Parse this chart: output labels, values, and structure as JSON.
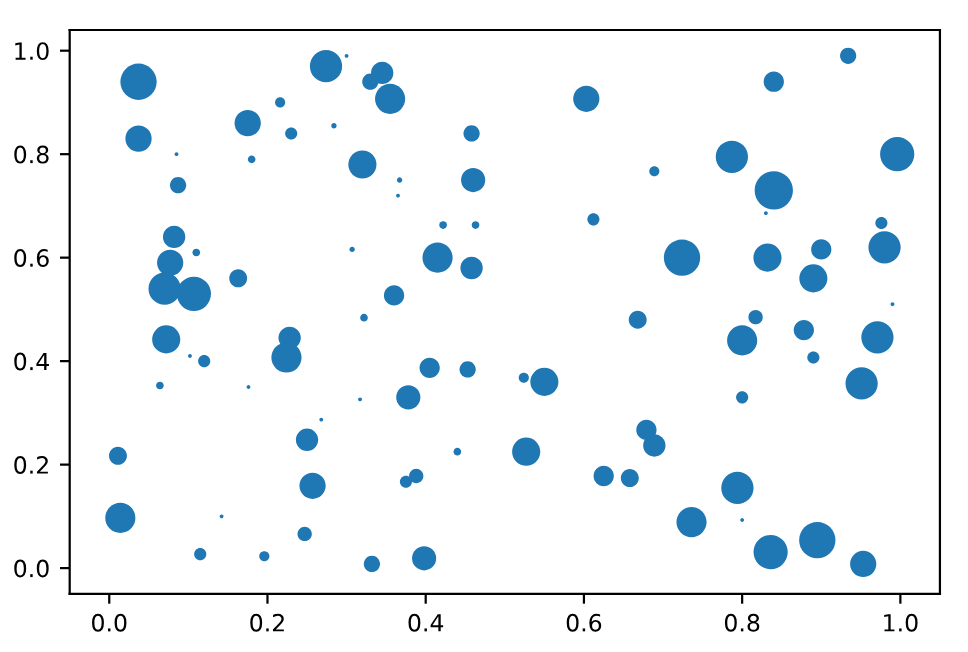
{
  "chart_data": {
    "type": "bubble",
    "color": "#1f77b4",
    "marker": "circle",
    "x": [
      0.037,
      0.037,
      0.085,
      0.087,
      0.082,
      0.11,
      0.077,
      0.07,
      0.107,
      0.163,
      0.175,
      0.18,
      0.216,
      0.23,
      0.274,
      0.3,
      0.284,
      0.345,
      0.33,
      0.355,
      0.32,
      0.367,
      0.365,
      0.307,
      0.415,
      0.458,
      0.458,
      0.46,
      0.422,
      0.463,
      0.36,
      0.322,
      0.603,
      0.84,
      0.934,
      0.787,
      0.84,
      0.996,
      0.689,
      0.83,
      0.612,
      0.724,
      0.832,
      0.9,
      0.89,
      0.98,
      0.976,
      0.99,
      0.668,
      0.817,
      0.8,
      0.878,
      0.89,
      0.971,
      0.951,
      0.524,
      0.55,
      0.8,
      0.679,
      0.689,
      0.527,
      0.625,
      0.658,
      0.794,
      0.736,
      0.8,
      0.836,
      0.895,
      0.953,
      0.453,
      0.072,
      0.102,
      0.12,
      0.064,
      0.176,
      0.228,
      0.224,
      0.317,
      0.268,
      0.378,
      0.405,
      0.44,
      0.011,
      0.25,
      0.257,
      0.375,
      0.388,
      0.014,
      0.142,
      0.247,
      0.115,
      0.196,
      0.332,
      0.398
    ],
    "values": [
      0.94,
      0.83,
      0.8,
      0.74,
      0.64,
      0.61,
      0.59,
      0.54,
      0.53,
      0.56,
      0.86,
      0.79,
      0.9,
      0.84,
      0.97,
      0.99,
      0.855,
      0.957,
      0.94,
      0.907,
      0.78,
      0.75,
      0.72,
      0.616,
      0.6,
      0.58,
      0.84,
      0.75,
      0.663,
      0.663,
      0.527,
      0.484,
      0.907,
      0.94,
      0.99,
      0.795,
      0.73,
      0.8,
      0.767,
      0.686,
      0.674,
      0.6,
      0.6,
      0.616,
      0.56,
      0.62,
      0.667,
      0.51,
      0.48,
      0.485,
      0.44,
      0.46,
      0.407,
      0.446,
      0.357,
      0.368,
      0.36,
      0.33,
      0.267,
      0.237,
      0.225,
      0.178,
      0.174,
      0.155,
      0.089,
      0.093,
      0.031,
      0.054,
      0.008,
      0.384,
      0.442,
      0.41,
      0.4,
      0.353,
      0.35,
      0.445,
      0.407,
      0.326,
      0.287,
      0.33,
      0.387,
      0.225,
      0.217,
      0.248,
      0.159,
      0.167,
      0.178,
      0.097,
      0.1,
      0.066,
      0.027,
      0.023,
      0.008,
      0.019
    ],
    "sizes": [
      0.9,
      0.47,
      0.01,
      0.18,
      0.34,
      0.04,
      0.47,
      0.71,
      0.8,
      0.22,
      0.47,
      0.04,
      0.07,
      0.1,
      0.71,
      0.01,
      0.02,
      0.34,
      0.18,
      0.62,
      0.54,
      0.02,
      0.01,
      0.02,
      0.62,
      0.34,
      0.18,
      0.4,
      0.04,
      0.04,
      0.28,
      0.04,
      0.47,
      0.28,
      0.18,
      0.71,
      1.0,
      0.8,
      0.07,
      0.01,
      0.1,
      0.9,
      0.54,
      0.28,
      0.54,
      0.71,
      0.1,
      0.01,
      0.22,
      0.14,
      0.62,
      0.28,
      0.1,
      0.71,
      0.71,
      0.07,
      0.54,
      0.1,
      0.28,
      0.34,
      0.54,
      0.28,
      0.22,
      0.71,
      0.62,
      0.01,
      0.8,
      0.9,
      0.47,
      0.18,
      0.54,
      0.01,
      0.1,
      0.04,
      0.01,
      0.34,
      0.62,
      0.01,
      0.01,
      0.4,
      0.28,
      0.04,
      0.22,
      0.34,
      0.47,
      0.1,
      0.14,
      0.62,
      0.01,
      0.14,
      0.1,
      0.07,
      0.18,
      0.4
    ],
    "xlim": [
      -0.05,
      1.05
    ],
    "ylim": [
      -0.05,
      1.04
    ],
    "xticks": [
      {
        "value": 0,
        "label": "0.0"
      },
      {
        "value": 0.2,
        "label": "0.2"
      },
      {
        "value": 0.4,
        "label": "0.4"
      },
      {
        "value": 0.6,
        "label": "0.6"
      },
      {
        "value": 0.8,
        "label": "0.8"
      },
      {
        "value": 1,
        "label": "1.0"
      }
    ],
    "yticks": [
      {
        "value": 0,
        "label": "0.0"
      },
      {
        "value": 0.2,
        "label": "0.2"
      },
      {
        "value": 0.4,
        "label": "0.4"
      },
      {
        "value": 0.6,
        "label": "0.6"
      },
      {
        "value": 0.8,
        "label": "0.8"
      },
      {
        "value": 1,
        "label": "1.0"
      }
    ]
  }
}
